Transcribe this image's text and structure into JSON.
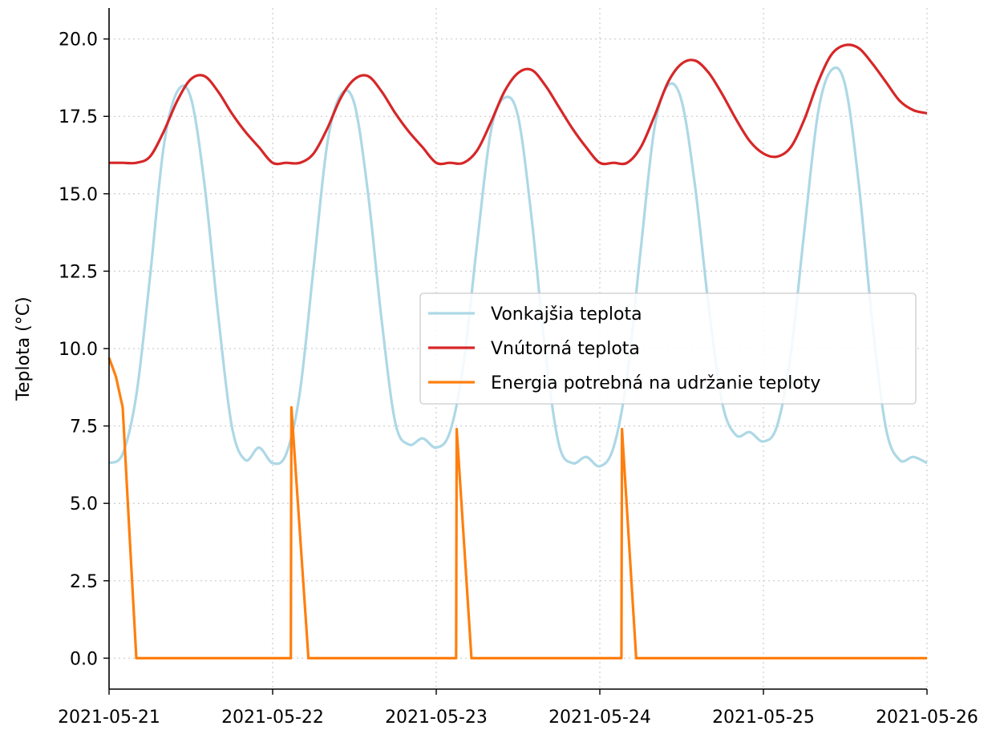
{
  "chart_data": {
    "type": "line",
    "title": "",
    "xlabel": "",
    "ylabel": "Teplota (°C)",
    "xlim": [
      "2021-05-21",
      "2021-05-26"
    ],
    "ylim": [
      -1.0,
      21.0
    ],
    "x_ticks": [
      "2021-05-21",
      "2021-05-22",
      "2021-05-23",
      "2021-05-24",
      "2021-05-25",
      "2021-05-26"
    ],
    "y_ticks": [
      "0.0",
      "2.5",
      "5.0",
      "7.5",
      "10.0",
      "12.5",
      "15.0",
      "17.5",
      "20.0"
    ],
    "grid": true,
    "legend_position": "center-right",
    "series": [
      {
        "name": "Vonkajšia teplota",
        "color": "#add8e6",
        "points": [
          [
            "2021-05-21 00:00",
            6.3
          ],
          [
            "2021-05-21 02:00",
            6.6
          ],
          [
            "2021-05-21 04:00",
            8.5
          ],
          [
            "2021-05-21 06:00",
            12.3
          ],
          [
            "2021-05-21 08:00",
            16.5
          ],
          [
            "2021-05-21 10:00",
            18.3
          ],
          [
            "2021-05-21 12:00",
            18.1
          ],
          [
            "2021-05-21 14:00",
            15.3
          ],
          [
            "2021-05-21 16:00",
            11.1
          ],
          [
            "2021-05-21 18:00",
            7.5
          ],
          [
            "2021-05-21 20:00",
            6.4
          ],
          [
            "2021-05-21 22:00",
            6.8
          ],
          [
            "2021-05-22 00:00",
            6.3
          ],
          [
            "2021-05-22 02:00",
            6.6
          ],
          [
            "2021-05-22 04:00",
            8.6
          ],
          [
            "2021-05-22 06:00",
            12.6
          ],
          [
            "2021-05-22 08:00",
            16.6
          ],
          [
            "2021-05-22 10:00",
            18.2
          ],
          [
            "2021-05-22 12:00",
            17.9
          ],
          [
            "2021-05-22 14:00",
            15.0
          ],
          [
            "2021-05-22 16:00",
            10.9
          ],
          [
            "2021-05-22 18:00",
            7.6
          ],
          [
            "2021-05-22 20:00",
            6.9
          ],
          [
            "2021-05-22 22:00",
            7.1
          ],
          [
            "2021-05-23 00:00",
            6.8
          ],
          [
            "2021-05-23 02:00",
            7.3
          ],
          [
            "2021-05-23 04:00",
            9.5
          ],
          [
            "2021-05-23 06:00",
            13.4
          ],
          [
            "2021-05-23 08:00",
            17.0
          ],
          [
            "2021-05-23 10:00",
            18.1
          ],
          [
            "2021-05-23 12:00",
            17.5
          ],
          [
            "2021-05-23 14:00",
            14.2
          ],
          [
            "2021-05-23 16:00",
            9.9
          ],
          [
            "2021-05-23 18:00",
            6.9
          ],
          [
            "2021-05-23 20:00",
            6.3
          ],
          [
            "2021-05-23 22:00",
            6.5
          ],
          [
            "2021-05-24 00:00",
            6.2
          ],
          [
            "2021-05-24 02:00",
            6.8
          ],
          [
            "2021-05-24 04:00",
            9.1
          ],
          [
            "2021-05-24 06:00",
            13.2
          ],
          [
            "2021-05-24 08:00",
            17.1
          ],
          [
            "2021-05-24 10:00",
            18.5
          ],
          [
            "2021-05-24 12:00",
            18.0
          ],
          [
            "2021-05-24 14:00",
            15.2
          ],
          [
            "2021-05-24 16:00",
            11.3
          ],
          [
            "2021-05-24 18:00",
            8.2
          ],
          [
            "2021-05-24 20:00",
            7.2
          ],
          [
            "2021-05-24 22:00",
            7.3
          ],
          [
            "2021-05-25 00:00",
            7.0
          ],
          [
            "2021-05-25 02:00",
            7.5
          ],
          [
            "2021-05-25 04:00",
            9.8
          ],
          [
            "2021-05-25 06:00",
            13.8
          ],
          [
            "2021-05-25 08:00",
            17.6
          ],
          [
            "2021-05-25 10:00",
            19.0
          ],
          [
            "2021-05-25 12:00",
            18.5
          ],
          [
            "2021-05-25 14:00",
            15.3
          ],
          [
            "2021-05-25 16:00",
            10.8
          ],
          [
            "2021-05-25 18:00",
            7.4
          ],
          [
            "2021-05-25 20:00",
            6.4
          ],
          [
            "2021-05-25 22:00",
            6.5
          ],
          [
            "2021-05-26 00:00",
            6.3
          ]
        ]
      },
      {
        "name": "Vnútorná teplota",
        "color": "#d62728",
        "points": [
          [
            "2021-05-21 00:00",
            16.0
          ],
          [
            "2021-05-21 02:00",
            16.0
          ],
          [
            "2021-05-21 04:00",
            16.0
          ],
          [
            "2021-05-21 06:00",
            16.2
          ],
          [
            "2021-05-21 08:00",
            17.0
          ],
          [
            "2021-05-21 10:00",
            18.0
          ],
          [
            "2021-05-21 12:00",
            18.7
          ],
          [
            "2021-05-21 14:00",
            18.8
          ],
          [
            "2021-05-21 16:00",
            18.3
          ],
          [
            "2021-05-21 18:00",
            17.6
          ],
          [
            "2021-05-21 20:00",
            17.0
          ],
          [
            "2021-05-21 22:00",
            16.5
          ],
          [
            "2021-05-22 00:00",
            16.0
          ],
          [
            "2021-05-22 02:00",
            16.0
          ],
          [
            "2021-05-22 04:00",
            16.0
          ],
          [
            "2021-05-22 06:00",
            16.3
          ],
          [
            "2021-05-22 08:00",
            17.1
          ],
          [
            "2021-05-22 10:00",
            18.1
          ],
          [
            "2021-05-22 12:00",
            18.7
          ],
          [
            "2021-05-22 14:00",
            18.8
          ],
          [
            "2021-05-22 16:00",
            18.3
          ],
          [
            "2021-05-22 18:00",
            17.6
          ],
          [
            "2021-05-22 20:00",
            17.0
          ],
          [
            "2021-05-22 22:00",
            16.5
          ],
          [
            "2021-05-23 00:00",
            16.0
          ],
          [
            "2021-05-23 02:00",
            16.0
          ],
          [
            "2021-05-23 04:00",
            16.0
          ],
          [
            "2021-05-23 06:00",
            16.4
          ],
          [
            "2021-05-23 08:00",
            17.3
          ],
          [
            "2021-05-23 10:00",
            18.3
          ],
          [
            "2021-05-23 12:00",
            18.9
          ],
          [
            "2021-05-23 14:00",
            19.0
          ],
          [
            "2021-05-23 16:00",
            18.5
          ],
          [
            "2021-05-23 18:00",
            17.8
          ],
          [
            "2021-05-23 20:00",
            17.1
          ],
          [
            "2021-05-23 22:00",
            16.5
          ],
          [
            "2021-05-24 00:00",
            16.0
          ],
          [
            "2021-05-24 02:00",
            16.0
          ],
          [
            "2021-05-24 04:00",
            16.0
          ],
          [
            "2021-05-24 06:00",
            16.5
          ],
          [
            "2021-05-24 08:00",
            17.5
          ],
          [
            "2021-05-24 10:00",
            18.6
          ],
          [
            "2021-05-24 12:00",
            19.2
          ],
          [
            "2021-05-24 14:00",
            19.3
          ],
          [
            "2021-05-24 16:00",
            18.9
          ],
          [
            "2021-05-24 18:00",
            18.2
          ],
          [
            "2021-05-24 20:00",
            17.4
          ],
          [
            "2021-05-24 22:00",
            16.7
          ],
          [
            "2021-05-25 00:00",
            16.3
          ],
          [
            "2021-05-25 02:00",
            16.2
          ],
          [
            "2021-05-25 04:00",
            16.5
          ],
          [
            "2021-05-25 06:00",
            17.4
          ],
          [
            "2021-05-25 08:00",
            18.6
          ],
          [
            "2021-05-25 10:00",
            19.5
          ],
          [
            "2021-05-25 12:00",
            19.8
          ],
          [
            "2021-05-25 14:00",
            19.7
          ],
          [
            "2021-05-25 16:00",
            19.2
          ],
          [
            "2021-05-25 18:00",
            18.6
          ],
          [
            "2021-05-25 20:00",
            18.0
          ],
          [
            "2021-05-25 22:00",
            17.7
          ],
          [
            "2021-05-26 00:00",
            17.6
          ]
        ]
      },
      {
        "name": "Energia potrebná na udržanie teploty",
        "color": "#ff7f0e",
        "points": [
          [
            "2021-05-21 00:00",
            9.7
          ],
          [
            "2021-05-21 01:00",
            9.1
          ],
          [
            "2021-05-21 02:00",
            8.1
          ],
          [
            "2021-05-21 03:00",
            4.0
          ],
          [
            "2021-05-21 04:00",
            0.0
          ],
          [
            "2021-05-22 02:40",
            0.0
          ],
          [
            "2021-05-22 02:45",
            8.1
          ],
          [
            "2021-05-22 05:15",
            0.0
          ],
          [
            "2021-05-23 02:55",
            0.0
          ],
          [
            "2021-05-23 03:00",
            7.4
          ],
          [
            "2021-05-23 05:10",
            0.0
          ],
          [
            "2021-05-24 03:10",
            0.0
          ],
          [
            "2021-05-24 03:15",
            7.4
          ],
          [
            "2021-05-24 05:20",
            0.0
          ],
          [
            "2021-05-26 00:00",
            0.0
          ]
        ]
      }
    ]
  }
}
